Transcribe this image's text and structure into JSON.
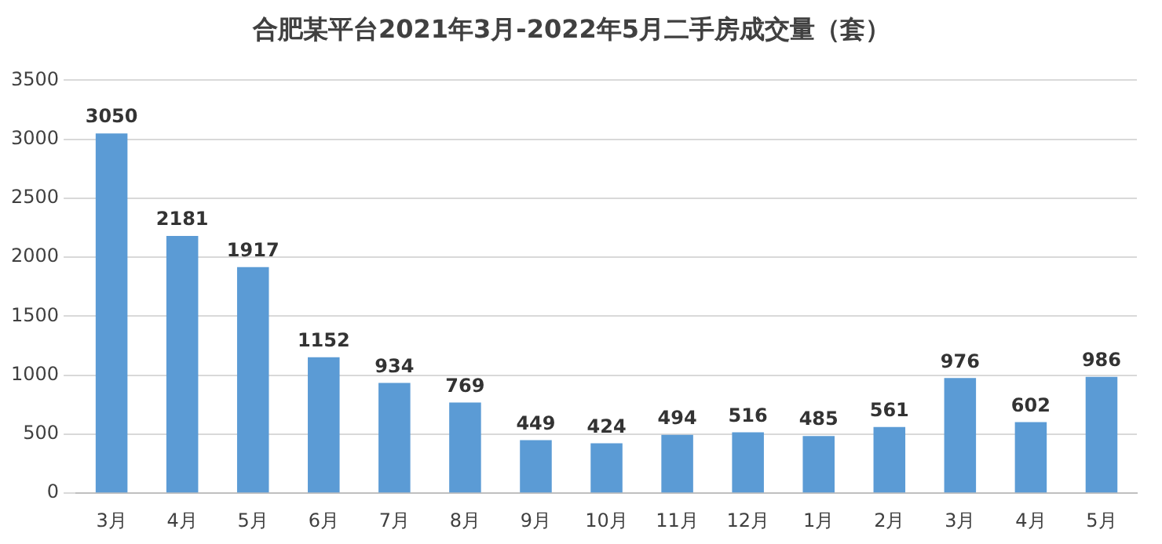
{
  "chart_data": {
    "type": "bar",
    "title": "合肥某平台2021年3月-2022年5月二手房成交量（套）",
    "categories": [
      "3月",
      "4月",
      "5月",
      "6月",
      "7月",
      "8月",
      "9月",
      "10月",
      "11月",
      "12月",
      "1月",
      "2月",
      "3月",
      "4月",
      "5月"
    ],
    "values": [
      3050,
      2181,
      1917,
      1152,
      934,
      769,
      449,
      424,
      494,
      516,
      485,
      561,
      976,
      602,
      986
    ],
    "color": "#5b9bd5",
    "ylim": [
      0,
      3500
    ],
    "yticks": [
      0,
      500,
      1000,
      1500,
      2000,
      2500,
      3000,
      3500
    ],
    "grid": "y",
    "data_labels": true,
    "legend": false
  }
}
